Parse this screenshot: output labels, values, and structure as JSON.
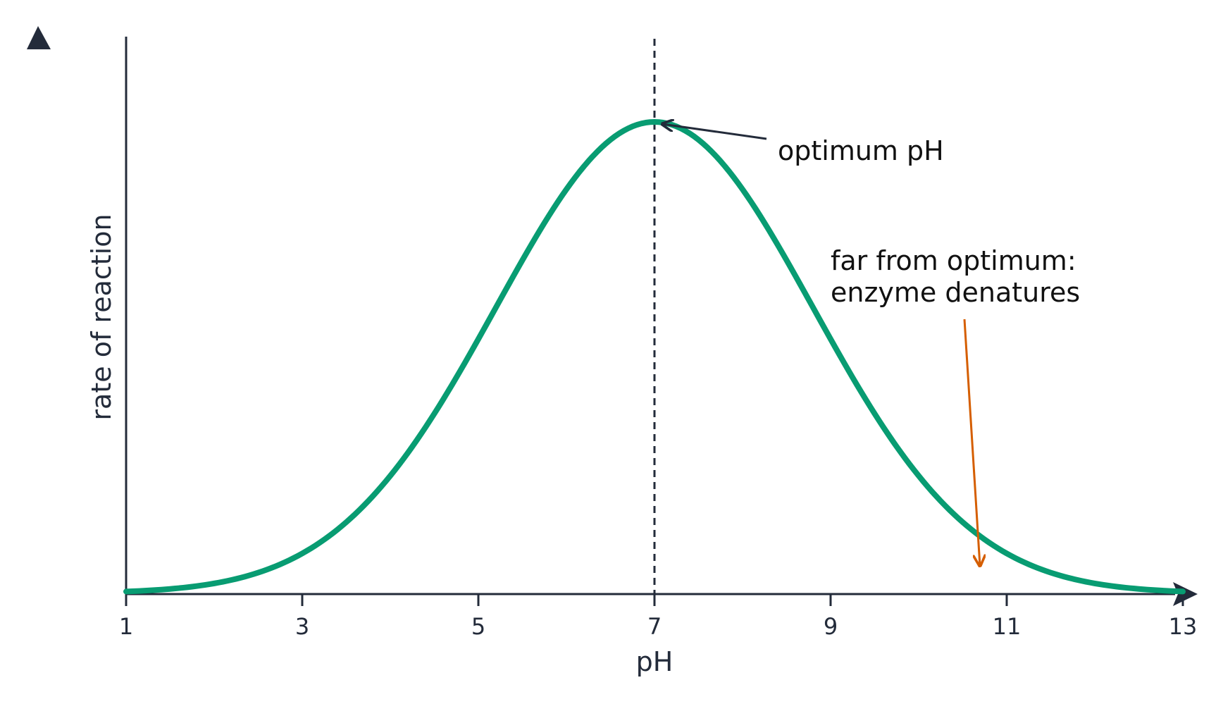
{
  "chart_data": {
    "type": "line",
    "title": "",
    "xlabel": "pH",
    "ylabel": "rate of reaction",
    "xlim": [
      1,
      13
    ],
    "ylim": [
      0,
      1
    ],
    "x_ticks": [
      1,
      3,
      5,
      7,
      9,
      11,
      13
    ],
    "y_ticks_shown": false,
    "grid": false,
    "series": [
      {
        "color": "#089c72",
        "curve": "bell",
        "peak_x": 7,
        "x": [
          1,
          1.5,
          2,
          2.5,
          3,
          3.5,
          4,
          4.5,
          5,
          5.5,
          6,
          6.5,
          7,
          7.5,
          8,
          8.5,
          9,
          9.5,
          10,
          10.5,
          11,
          11.5,
          12,
          12.5,
          13
        ],
        "y": [
          0.0,
          0.002,
          0.006,
          0.015,
          0.034,
          0.07,
          0.135,
          0.245,
          0.41,
          0.6,
          0.8,
          0.945,
          1.0,
          0.945,
          0.8,
          0.6,
          0.41,
          0.245,
          0.135,
          0.07,
          0.034,
          0.015,
          0.006,
          0.002,
          0.0
        ]
      }
    ],
    "reference_line": {
      "axis": "x",
      "value": 7,
      "style": "dashed",
      "color": "#232b3a"
    },
    "annotations": [
      {
        "lines": [
          "optimum pH"
        ],
        "points_to_x": 7,
        "arrow_color": "#232b3a"
      },
      {
        "lines": [
          "far from optimum:",
          "enzyme denatures"
        ],
        "points_to_x": 10.7,
        "arrow_color": "#d55e00"
      }
    ],
    "colors": {
      "axis": "#232b3a",
      "curve": "#089c72",
      "highlight": "#d55e00",
      "text": "#111111"
    }
  }
}
